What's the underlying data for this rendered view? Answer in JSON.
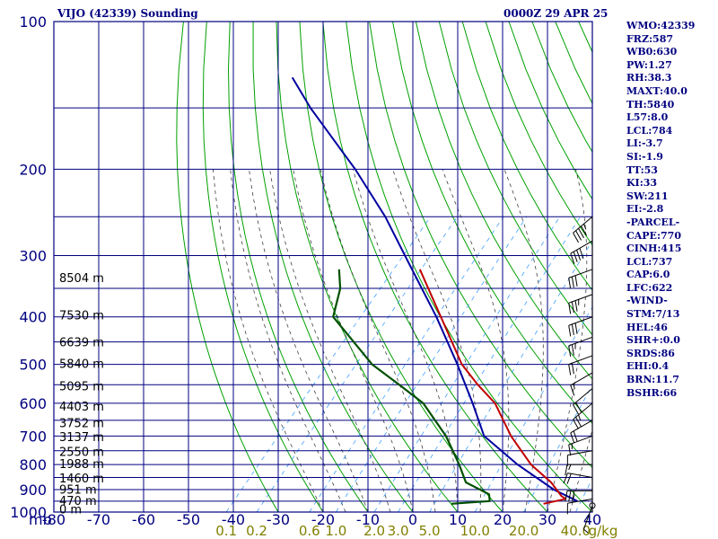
{
  "header": {
    "station": "VIJO (42339) Sounding",
    "time": "0000Z 29 APR 25"
  },
  "indices": [
    "WMO:42339",
    "FRZ:587",
    "WB0:630",
    "PW:1.27",
    "RH:38.3",
    "MAXT:40.0",
    "TH:5840",
    "L57:8.0",
    "LCL:784",
    "LI:-3.7",
    "SI:-1.9",
    "TT:53",
    "KI:33",
    "SW:211",
    "EI:-2.8",
    "-PARCEL-",
    "CAPE:770",
    "CINH:415",
    "LCL:737",
    "CAP:6.0",
    "LFC:622",
    "-WIND-",
    "STM:7/13",
    "HEL:46",
    "SHR+:0.0",
    "SRDS:86",
    "EHI:0.4",
    "BRN:11.7",
    "BSHR:66"
  ],
  "colors": {
    "grid": "#000080",
    "dry_adiabat": "#00a000",
    "moist_adiabat": "#404040",
    "mixing_ratio": "#40a0ff",
    "temperature": "#c00000",
    "dewpoint": "#005000",
    "parcel": "#0000a0",
    "mixing_label": "#808000"
  },
  "chart_data": {
    "type": "skew-t sounding",
    "title": "VIJO (42339) Sounding",
    "time": "0000Z 29 APR 25",
    "x_unit_label": "mb",
    "x_ticks": [
      -80,
      -70,
      -60,
      -50,
      -40,
      -30,
      -20,
      -10,
      0,
      10,
      20,
      30,
      40
    ],
    "xlim": [
      -80,
      40
    ],
    "pressure_ticks": [
      100,
      200,
      300,
      400,
      500,
      600,
      700,
      800,
      900,
      1000
    ],
    "ylim": [
      100,
      1000
    ],
    "height_labels": [
      {
        "p": 334,
        "label": "8504 m"
      },
      {
        "p": 398,
        "label": "7530 m"
      },
      {
        "p": 452,
        "label": "6639 m"
      },
      {
        "p": 500,
        "label": "5840 m"
      },
      {
        "p": 555,
        "label": "5095 m"
      },
      {
        "p": 610,
        "label": "4403 m"
      },
      {
        "p": 660,
        "label": "3752 m"
      },
      {
        "p": 705,
        "label": "3137 m"
      },
      {
        "p": 755,
        "label": "2550 m"
      },
      {
        "p": 800,
        "label": "1988 m"
      },
      {
        "p": 855,
        "label": "1460 m"
      },
      {
        "p": 902,
        "label": "951 m"
      },
      {
        "p": 950,
        "label": "470 m"
      },
      {
        "p": 990,
        "label": "0 m"
      }
    ],
    "mixing_ratio_labels": [
      "0.1",
      "0.2",
      "0.6",
      "1.0",
      "2.0",
      "3.0",
      "5.0",
      "10.0",
      "20.0",
      "40.0"
    ],
    "mixing_ratio_unit": "g/kg",
    "temperature": [
      {
        "p": 962,
        "t": 27.5
      },
      {
        "p": 940,
        "t": 31.5
      },
      {
        "p": 928,
        "t": 30.0
      },
      {
        "p": 870,
        "t": 25.0
      },
      {
        "p": 800,
        "t": 17.0
      },
      {
        "p": 700,
        "t": 7.0
      },
      {
        "p": 600,
        "t": -3.0
      },
      {
        "p": 550,
        "t": -10.5
      },
      {
        "p": 500,
        "t": -18.0
      },
      {
        "p": 400,
        "t": -32.0
      },
      {
        "p": 320,
        "t": -46.0
      }
    ],
    "dewpoint": [
      {
        "p": 962,
        "t": 7.0
      },
      {
        "p": 950,
        "t": 15.0
      },
      {
        "p": 920,
        "t": 13.5
      },
      {
        "p": 870,
        "t": 6.0
      },
      {
        "p": 800,
        "t": 1.0
      },
      {
        "p": 700,
        "t": -7.5
      },
      {
        "p": 600,
        "t": -19.0
      },
      {
        "p": 550,
        "t": -28.0
      },
      {
        "p": 500,
        "t": -38.0
      },
      {
        "p": 400,
        "t": -56.0
      },
      {
        "p": 350,
        "t": -60.0
      },
      {
        "p": 320,
        "t": -64.0
      }
    ],
    "parcel": [
      {
        "p": 950,
        "t": 34.5
      },
      {
        "p": 900,
        "t": 27.0
      },
      {
        "p": 800,
        "t": 14.0
      },
      {
        "p": 700,
        "t": 1.0
      },
      {
        "p": 600,
        "t": -8.0
      },
      {
        "p": 500,
        "t": -19.0
      },
      {
        "p": 400,
        "t": -33.0
      },
      {
        "p": 300,
        "t": -52.0
      },
      {
        "p": 250,
        "t": -64.0
      },
      {
        "p": 200,
        "t": -80.0
      },
      {
        "p": 150,
        "t": -102.0
      },
      {
        "p": 130,
        "t": -112.0
      }
    ],
    "wind_barbs": [
      {
        "p": 970,
        "dir": 200,
        "spd": 5
      },
      {
        "p": 940,
        "dir": 260,
        "spd": 10
      },
      {
        "p": 905,
        "dir": 270,
        "spd": 30
      },
      {
        "p": 850,
        "dir": 280,
        "spd": 20
      },
      {
        "p": 800,
        "dir": 270,
        "spd": 15
      },
      {
        "p": 750,
        "dir": 260,
        "spd": 10
      },
      {
        "p": 700,
        "dir": 250,
        "spd": 15
      },
      {
        "p": 650,
        "dir": 240,
        "spd": 20
      },
      {
        "p": 600,
        "dir": 230,
        "spd": 25
      },
      {
        "p": 560,
        "dir": 230,
        "spd": 20
      },
      {
        "p": 520,
        "dir": 240,
        "spd": 15
      },
      {
        "p": 480,
        "dir": 250,
        "spd": 20
      },
      {
        "p": 440,
        "dir": 250,
        "spd": 25
      },
      {
        "p": 400,
        "dir": 250,
        "spd": 30
      },
      {
        "p": 360,
        "dir": 250,
        "spd": 35
      },
      {
        "p": 320,
        "dir": 250,
        "spd": 30
      },
      {
        "p": 280,
        "dir": 240,
        "spd": 40
      },
      {
        "p": 250,
        "dir": 230,
        "spd": 45
      }
    ]
  }
}
